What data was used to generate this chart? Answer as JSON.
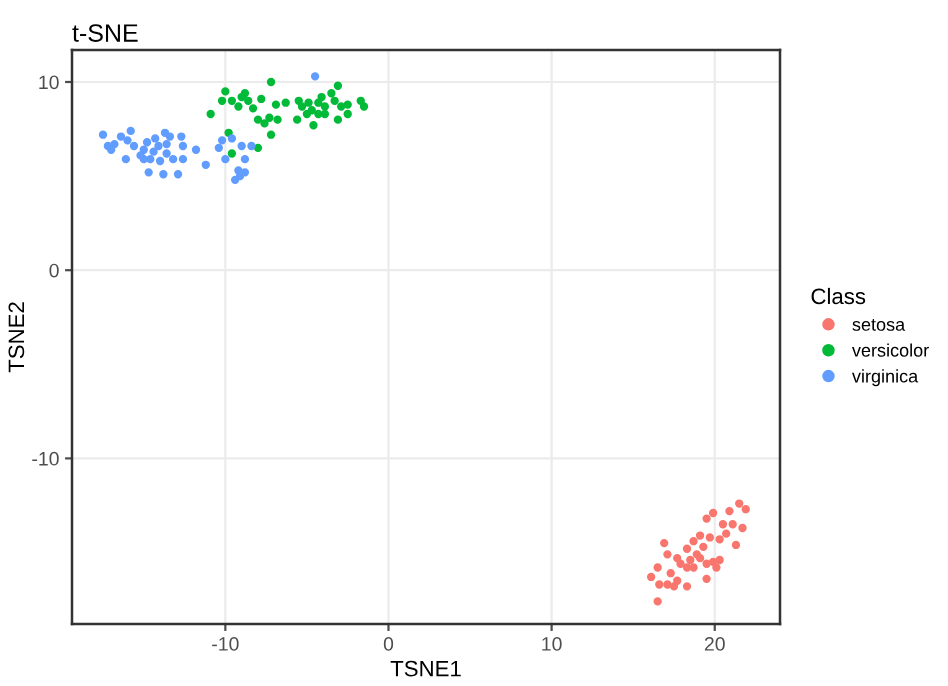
{
  "chart_data": {
    "type": "scatter",
    "title": "t-SNE",
    "xlabel": "TSNE1",
    "ylabel": "TSNE2",
    "legend_title": "Class",
    "legend": "right",
    "grid": true,
    "marker": "circle",
    "xlim": [
      -19.4,
      24
    ],
    "ylim": [
      -18.8,
      11.7
    ],
    "xticks": [
      -10,
      0,
      10,
      20
    ],
    "yticks": [
      -10,
      0,
      10
    ],
    "series": [
      {
        "name": "setosa",
        "color": "#f8766d",
        "x": [
          21.5,
          21.9,
          20.9,
          19.9,
          21.7,
          21.1,
          20.5,
          19.5,
          20.7,
          19.7,
          20.3,
          21.3,
          19.1,
          18.7,
          19.3,
          18.9,
          18.3,
          17.7,
          17.1,
          18.5,
          19.9,
          20.3,
          19.5,
          18.7,
          17.9,
          16.9,
          17.3,
          17.7,
          18.3,
          16.5,
          16.1,
          16.6,
          17.1,
          17.5,
          16.5,
          18.3,
          19.1,
          19.5,
          20.1
        ],
        "values": [
          -12.4,
          -12.7,
          -12.8,
          -12.9,
          -13.7,
          -13.5,
          -13.5,
          -13.2,
          -14.0,
          -14.2,
          -14.3,
          -14.6,
          -14.1,
          -14.4,
          -14.7,
          -15.1,
          -14.8,
          -15.3,
          -15.1,
          -15.4,
          -15.5,
          -15.4,
          -16.4,
          -15.8,
          -15.6,
          -14.5,
          -16.1,
          -16.5,
          -16.8,
          -15.8,
          -16.3,
          -16.7,
          -16.7,
          -16.8,
          -17.6,
          -15.8,
          -15.3,
          -15.6,
          -15.8
        ]
      },
      {
        "name": "versicolor",
        "color": "#00ba38",
        "x": [
          -10.9,
          -10.0,
          -10.2,
          -9.6,
          -9.0,
          -8.8,
          -8.6,
          -7.8,
          -7.2,
          -6.9,
          -8.3,
          -9.2,
          -8.0,
          -7.3,
          -7.6,
          -6.8,
          -7.2,
          -8.0,
          -9.8,
          -9.6,
          -5.5,
          -5.3,
          -5.6,
          -5.0,
          -4.6,
          -4.7,
          -4.3,
          -4.3,
          -3.9,
          -3.5,
          -3.1,
          -3.3,
          -2.9,
          -2.5,
          -3.1,
          -2.5,
          -1.7,
          -1.5,
          -4.1,
          -3.9,
          -4.9,
          -6.3
        ],
        "values": [
          8.3,
          9.5,
          9.0,
          9.0,
          9.2,
          9.4,
          9.0,
          9.1,
          10.0,
          8.8,
          8.6,
          8.7,
          8.0,
          8.1,
          7.8,
          8.0,
          7.2,
          6.5,
          7.3,
          6.2,
          9.0,
          8.7,
          8.0,
          8.3,
          7.7,
          8.5,
          8.3,
          8.9,
          8.7,
          9.4,
          9.8,
          9.0,
          8.7,
          8.8,
          8.0,
          8.3,
          9.0,
          8.7,
          9.2,
          8.3,
          8.9,
          8.9
        ]
      },
      {
        "name": "virginica",
        "color": "#619cff",
        "x": [
          -17.5,
          -17.2,
          -16.8,
          -16.4,
          -15.8,
          -16.0,
          -15.6,
          -16.1,
          -15.0,
          -14.8,
          -14.3,
          -14.1,
          -13.7,
          -13.4,
          -12.7,
          -12.6,
          -13.6,
          -13.2,
          -14.0,
          -14.6,
          -15.0,
          -14.7,
          -13.8,
          -12.9,
          -12.6,
          -11.8,
          -11.2,
          -10.4,
          -10.0,
          -10.2,
          -9.6,
          -9.0,
          -8.4,
          -8.8,
          -9.2,
          -8.8,
          -9.4,
          -9.1,
          -4.5,
          -14.4,
          -15.2,
          -17.0,
          -13.6
        ],
        "values": [
          7.2,
          6.6,
          6.7,
          7.1,
          7.4,
          6.9,
          6.6,
          5.9,
          6.4,
          6.8,
          7.0,
          6.6,
          7.3,
          7.1,
          7.1,
          6.6,
          6.2,
          5.9,
          5.8,
          5.9,
          5.9,
          5.2,
          5.1,
          5.1,
          5.9,
          6.4,
          5.6,
          6.5,
          5.9,
          6.9,
          7.0,
          6.6,
          6.6,
          5.9,
          5.3,
          5.2,
          4.8,
          5.0,
          10.3,
          6.3,
          6.1,
          6.4,
          6.7
        ]
      }
    ]
  }
}
